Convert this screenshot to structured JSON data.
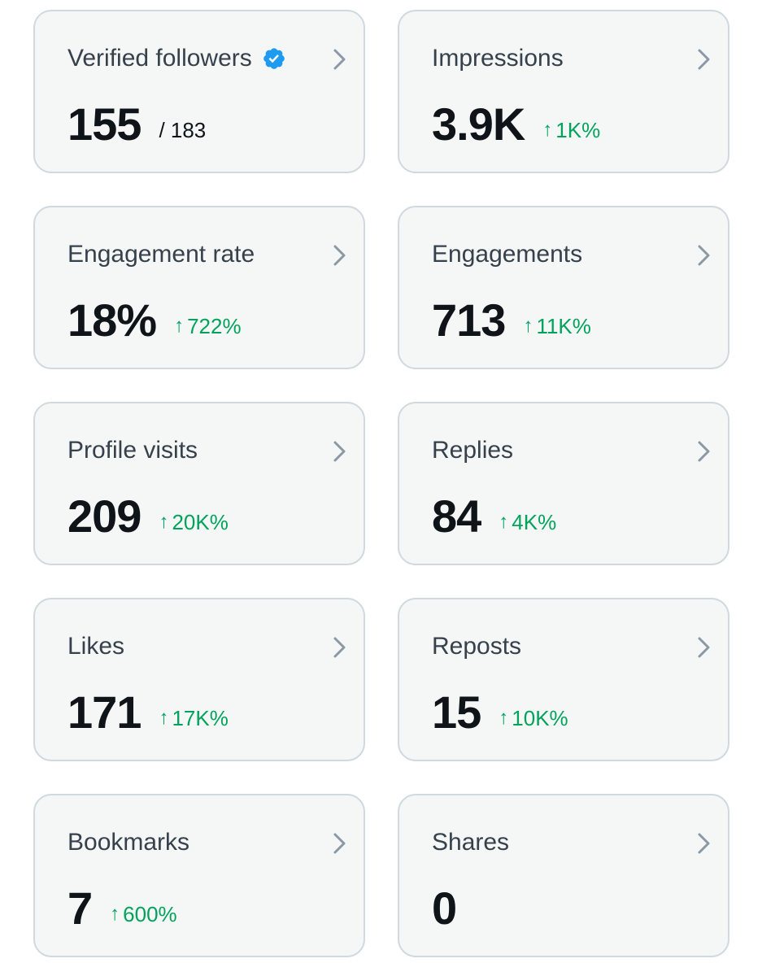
{
  "cards": [
    {
      "title": "Verified followers",
      "value": "155",
      "sub_total": "/ 183",
      "delta": "",
      "verified": true
    },
    {
      "title": "Impressions",
      "value": "3.9K",
      "sub_total": "",
      "delta": "1K%"
    },
    {
      "title": "Engagement rate",
      "value": "18%",
      "sub_total": "",
      "delta": "722%"
    },
    {
      "title": "Engagements",
      "value": "713",
      "sub_total": "",
      "delta": "11K%"
    },
    {
      "title": "Profile visits",
      "value": "209",
      "sub_total": "",
      "delta": "20K%"
    },
    {
      "title": "Replies",
      "value": "84",
      "sub_total": "",
      "delta": "4K%"
    },
    {
      "title": "Likes",
      "value": "171",
      "sub_total": "",
      "delta": "17K%"
    },
    {
      "title": "Reposts",
      "value": "15",
      "sub_total": "",
      "delta": "10K%"
    },
    {
      "title": "Bookmarks",
      "value": "7",
      "sub_total": "",
      "delta": "600%"
    },
    {
      "title": "Shares",
      "value": "0",
      "sub_total": "",
      "delta": ""
    }
  ],
  "icons": {
    "chevron": "chevron-right-icon",
    "verified": "verified-badge-icon",
    "delta_arrow": "arrow-up-icon"
  },
  "colors": {
    "card_background": "#f5f6f6",
    "card_border": "#cfd9de",
    "title_text": "#36414c",
    "value_text": "#0f1419",
    "delta_positive": "#00a35c",
    "verified_blue": "#1d9bf0",
    "chevron": "#8b98a5"
  }
}
